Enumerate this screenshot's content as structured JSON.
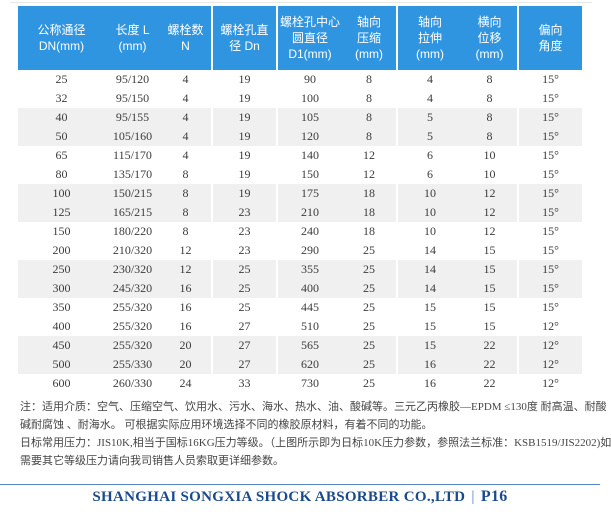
{
  "colors": {
    "header_bg": "#3095e0",
    "stripe": "#f0f0f0",
    "body_text": "#3c3c3c",
    "footer_text": "#1a4a8c",
    "footer_line": "#5585c2"
  },
  "table": {
    "headers": [
      {
        "lines": [
          "公称通径",
          "DN(mm)"
        ]
      },
      {
        "lines": [
          "长度 L",
          "(mm)"
        ]
      },
      {
        "lines": [
          "螺栓数",
          "N"
        ]
      },
      {
        "lines": [
          "螺栓孔直",
          "径 Dn"
        ]
      },
      {
        "lines": [
          "螺栓孔中心",
          "圆直径",
          "D1(mm)"
        ]
      },
      {
        "lines": [
          "轴向",
          "压缩",
          "(mm)"
        ]
      },
      {
        "lines": [
          "轴向",
          "拉伸",
          "(mm)"
        ]
      },
      {
        "lines": [
          "横向",
          "位移",
          "(mm)"
        ]
      },
      {
        "lines": [
          "偏向",
          "角度"
        ]
      }
    ],
    "rows": [
      [
        "25",
        "95/120",
        "4",
        "19",
        "90",
        "8",
        "4",
        "8",
        "15°"
      ],
      [
        "32",
        "95/150",
        "4",
        "19",
        "100",
        "8",
        "4",
        "8",
        "15°"
      ],
      [
        "40",
        "95/155",
        "4",
        "19",
        "105",
        "8",
        "5",
        "8",
        "15°"
      ],
      [
        "50",
        "105/160",
        "4",
        "19",
        "120",
        "8",
        "5",
        "8",
        "15°"
      ],
      [
        "65",
        "115/170",
        "4",
        "19",
        "140",
        "12",
        "6",
        "10",
        "15°"
      ],
      [
        "80",
        "135/170",
        "8",
        "19",
        "150",
        "12",
        "6",
        "10",
        "15°"
      ],
      [
        "100",
        "150/215",
        "8",
        "19",
        "175",
        "18",
        "10",
        "12",
        "15°"
      ],
      [
        "125",
        "165/215",
        "8",
        "23",
        "210",
        "18",
        "10",
        "12",
        "15°"
      ],
      [
        "150",
        "180/220",
        "8",
        "23",
        "240",
        "18",
        "10",
        "12",
        "15°"
      ],
      [
        "200",
        "210/320",
        "12",
        "23",
        "290",
        "25",
        "14",
        "15",
        "15°"
      ],
      [
        "250",
        "230/320",
        "12",
        "25",
        "355",
        "25",
        "14",
        "15",
        "15°"
      ],
      [
        "300",
        "245/320",
        "16",
        "25",
        "400",
        "25",
        "14",
        "15",
        "15°"
      ],
      [
        "350",
        "255/320",
        "16",
        "25",
        "445",
        "25",
        "15",
        "15",
        "15°"
      ],
      [
        "400",
        "255/320",
        "16",
        "27",
        "510",
        "25",
        "15",
        "15",
        "12°"
      ],
      [
        "450",
        "255/320",
        "20",
        "27",
        "565",
        "25",
        "15",
        "22",
        "12°"
      ],
      [
        "500",
        "255/330",
        "20",
        "27",
        "620",
        "25",
        "16",
        "22",
        "12°"
      ],
      [
        "600",
        "260/330",
        "24",
        "33",
        "730",
        "25",
        "16",
        "22",
        "12°"
      ]
    ]
  },
  "notes": {
    "lines": [
      "注：适用介质：空气、压缩空气、饮用水、污水、海水、热水、油、酸碱等。三元乙丙橡胶—EPDM ≤130度 耐高温、耐酸",
      "碱耐腐蚀 、耐海水。 可根据实际应用环境选择不同的橡胶原材料，有着不同的功能。",
      "日标常用压力：JIS10K,相当于国标16KG压力等级。（上图所示即为日标10K压力参数，参照法兰标准：KSB1519/JIS2202)如",
      "需要其它等级压力请向我司销售人员索取更详细参数。"
    ]
  },
  "footer": {
    "company": "SHANGHAI SONGXIA SHOCK ABSORBER CO.,LTD",
    "separator": "|",
    "page": "P16"
  }
}
